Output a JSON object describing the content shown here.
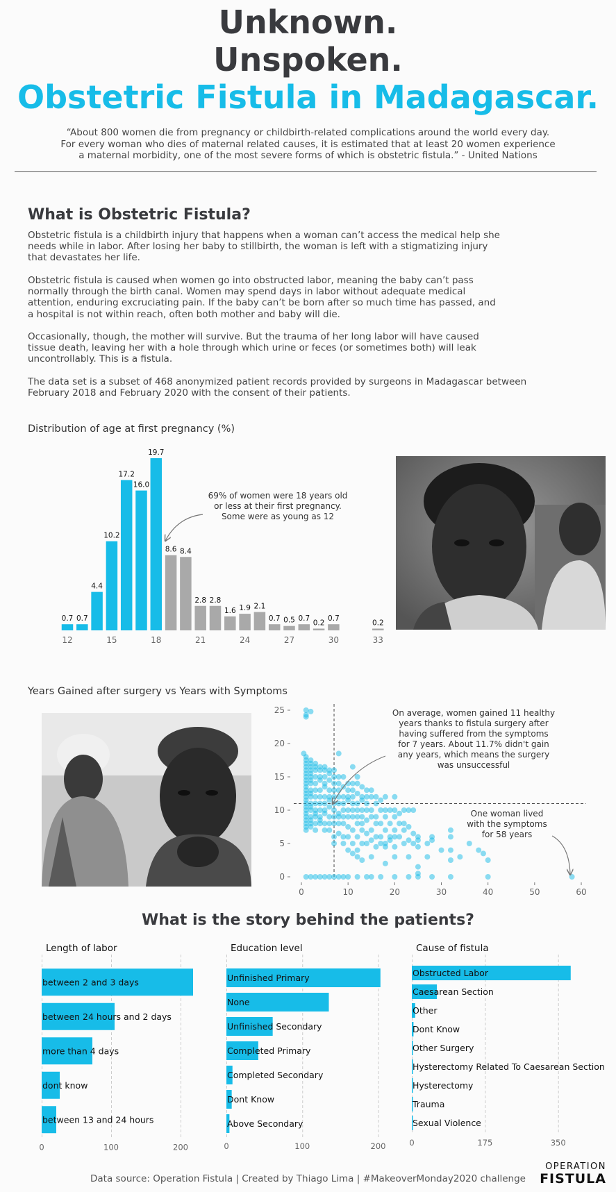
{
  "header": {
    "line1": "Unknown.",
    "line2": "Unspoken.",
    "line3": "Obstetric Fistula in Madagascar.",
    "quote": [
      "“About 800 women die from pregnancy or childbirth-related complications around the world every day.",
      "For every woman who dies of maternal related causes, it is estimated that at least 20 women experience",
      "a maternal morbidity, one of the most severe forms of which is obstetric fistula.” - United Nations"
    ]
  },
  "intro": {
    "title": "What is Obstetric Fistula?",
    "paragraphs": [
      [
        "Obstetric fistula is a childbirth injury that happens when a woman can’t access the medical help she",
        "needs while in labor. After losing her baby to stillbirth, the woman is left with a stigmatizing injury",
        "that devastates her life."
      ],
      [
        "Obstetric fistula is caused when women go into obstructed labor, meaning the baby can’t pass",
        "normally through the birth canal. Women may spend days in labor without adequate medical",
        "attention, enduring excruciating pain. If the baby can’t be born after so much time has passed, and",
        "a hospital is not within reach, often both mother and baby will die."
      ],
      [
        "Occasionally, though, the mother will survive. But the trauma of her long labor will have caused",
        "tissue death, leaving her with a hole through which urine or feces (or sometimes both) will leak",
        "uncontrollably. This is a fistula."
      ],
      [
        "The data set is a subset of 468 anonymized patient records provided by surgeons in Madagascar between",
        "February 2018 and February 2020 with the consent of their patients."
      ]
    ]
  },
  "colors": {
    "accent": "#17bce8",
    "grey": "#a9a9a9",
    "title": "#393a3e"
  },
  "chart_data": [
    {
      "id": "age",
      "type": "bar",
      "title": "Distribution of age at first pregnancy (%)",
      "x": [
        12,
        13,
        14,
        15,
        16,
        17,
        18,
        19,
        20,
        21,
        22,
        23,
        24,
        25,
        26,
        27,
        28,
        29,
        30,
        33
      ],
      "values": [
        0.7,
        0.7,
        4.4,
        10.2,
        17.2,
        16.0,
        19.7,
        8.6,
        8.4,
        2.8,
        2.8,
        1.6,
        1.9,
        2.1,
        0.7,
        0.5,
        0.7,
        0.2,
        0.7,
        0.2
      ],
      "value_labels": [
        "0.7",
        "0.7",
        "4.4",
        "10.2",
        "17.2",
        "16.0",
        "19.7",
        "8.6",
        "8.4",
        "2.8",
        "2.8",
        "1.6",
        "1.9",
        "2.1",
        "0.7",
        "0.5",
        "0.7",
        "0.2",
        "0.7",
        "0.2"
      ],
      "highlight_max_age": 18,
      "xticks": [
        "12",
        "15",
        "18",
        "21",
        "24",
        "27",
        "30",
        "33"
      ],
      "annotation": [
        "69% of women were 18 years old",
        "or less at their first pregnancy.",
        "Some were as young as 12"
      ]
    },
    {
      "id": "scatter",
      "type": "scatter",
      "title": "Years Gained after surgery vs Years with Symptoms",
      "xlim": [
        0,
        60
      ],
      "ylim": [
        0,
        25
      ],
      "xticks": [
        "0",
        "10",
        "20",
        "30",
        "40",
        "50",
        "60"
      ],
      "yticks": [
        "0",
        "5",
        "10",
        "15",
        "20",
        "25"
      ],
      "mean_x": 7,
      "mean_y": 11,
      "annotation_main": [
        "On average, women gained 11 healthy",
        "years thanks to fistula surgery after",
        "having suffered from the symptoms",
        "for 7 years. About 11.7% didn't gain",
        "any years, which means the surgery",
        "was unsuccessful"
      ],
      "annotation_outlier": [
        "One woman lived",
        "with the symptoms",
        "for 58 years"
      ],
      "points": [
        [
          1,
          25
        ],
        [
          1,
          24.3
        ],
        [
          2,
          24.8
        ],
        [
          1,
          24
        ],
        [
          0.5,
          18.5
        ],
        [
          1,
          18
        ],
        [
          1,
          17.5
        ],
        [
          1,
          17
        ],
        [
          1,
          16.5
        ],
        [
          1,
          16
        ],
        [
          1,
          15.5
        ],
        [
          1,
          15
        ],
        [
          1,
          14.5
        ],
        [
          1,
          14
        ],
        [
          1,
          13.5
        ],
        [
          1,
          13
        ],
        [
          1,
          12.5
        ],
        [
          1,
          12
        ],
        [
          1,
          11.5
        ],
        [
          1,
          11
        ],
        [
          1,
          10.5
        ],
        [
          1,
          10
        ],
        [
          1,
          9.5
        ],
        [
          1,
          9
        ],
        [
          1,
          8.5
        ],
        [
          1,
          8
        ],
        [
          1,
          7.5
        ],
        [
          1,
          7
        ],
        [
          2,
          17.5
        ],
        [
          2,
          17
        ],
        [
          2,
          16.5
        ],
        [
          2,
          16
        ],
        [
          2,
          15.5
        ],
        [
          2,
          15
        ],
        [
          2,
          14.5
        ],
        [
          2,
          14
        ],
        [
          2,
          13
        ],
        [
          2,
          12.5
        ],
        [
          2,
          12
        ],
        [
          2,
          11
        ],
        [
          2,
          10.5
        ],
        [
          2,
          10
        ],
        [
          2,
          9
        ],
        [
          2,
          8.5
        ],
        [
          2,
          8
        ],
        [
          2,
          7.5
        ],
        [
          3,
          17
        ],
        [
          3,
          16.5
        ],
        [
          3,
          16
        ],
        [
          3,
          15
        ],
        [
          3,
          14
        ],
        [
          3,
          13
        ],
        [
          3,
          12
        ],
        [
          3,
          11
        ],
        [
          3,
          10
        ],
        [
          3,
          9.5
        ],
        [
          3,
          9
        ],
        [
          3,
          8
        ],
        [
          3,
          7
        ],
        [
          4,
          16.5
        ],
        [
          4,
          16
        ],
        [
          4,
          15
        ],
        [
          4,
          14.5
        ],
        [
          4,
          13
        ],
        [
          4,
          12
        ],
        [
          4,
          11
        ],
        [
          4,
          10
        ],
        [
          4,
          9
        ],
        [
          4,
          8.5
        ],
        [
          4,
          8
        ],
        [
          5,
          16.5
        ],
        [
          5,
          16
        ],
        [
          5,
          15
        ],
        [
          5,
          14
        ],
        [
          5,
          13.5
        ],
        [
          5,
          12
        ],
        [
          5,
          11
        ],
        [
          5,
          10
        ],
        [
          5,
          9.5
        ],
        [
          5,
          8
        ],
        [
          5,
          7
        ],
        [
          6,
          16
        ],
        [
          6,
          15.5
        ],
        [
          6,
          14.5
        ],
        [
          6,
          13
        ],
        [
          6,
          12
        ],
        [
          6,
          11.5
        ],
        [
          6,
          10.5
        ],
        [
          6,
          9
        ],
        [
          6,
          8
        ],
        [
          6,
          7
        ],
        [
          7,
          16
        ],
        [
          7,
          15
        ],
        [
          7,
          14
        ],
        [
          7,
          13
        ],
        [
          7,
          12
        ],
        [
          7,
          11
        ],
        [
          7,
          10
        ],
        [
          7,
          9
        ],
        [
          7,
          8
        ],
        [
          7,
          6
        ],
        [
          7,
          5
        ],
        [
          8,
          18.5
        ],
        [
          8,
          15
        ],
        [
          8,
          14
        ],
        [
          8,
          13
        ],
        [
          8,
          12
        ],
        [
          8,
          11
        ],
        [
          8,
          9.5
        ],
        [
          8,
          9
        ],
        [
          8,
          8
        ],
        [
          8,
          6.5
        ],
        [
          9,
          15
        ],
        [
          9,
          13.5
        ],
        [
          9,
          12
        ],
        [
          9,
          11
        ],
        [
          9,
          10
        ],
        [
          9,
          9
        ],
        [
          9,
          8
        ],
        [
          9,
          6
        ],
        [
          9,
          5
        ],
        [
          10,
          14
        ],
        [
          10,
          13
        ],
        [
          10,
          12
        ],
        [
          10,
          11.5
        ],
        [
          10,
          10
        ],
        [
          10,
          9
        ],
        [
          10,
          7.5
        ],
        [
          10,
          6
        ],
        [
          10,
          4
        ],
        [
          11,
          16.5
        ],
        [
          11,
          14
        ],
        [
          11,
          13
        ],
        [
          11,
          12
        ],
        [
          11,
          11
        ],
        [
          11,
          10
        ],
        [
          11,
          9
        ],
        [
          11,
          7
        ],
        [
          11,
          5
        ],
        [
          11,
          3.5
        ],
        [
          12,
          15
        ],
        [
          12,
          14
        ],
        [
          12,
          12.5
        ],
        [
          12,
          11
        ],
        [
          12,
          10
        ],
        [
          12,
          9
        ],
        [
          12,
          8
        ],
        [
          12,
          6
        ],
        [
          12,
          4
        ],
        [
          12,
          3
        ],
        [
          13,
          13.5
        ],
        [
          13,
          12
        ],
        [
          13,
          11.5
        ],
        [
          13,
          10
        ],
        [
          13,
          9
        ],
        [
          13,
          8
        ],
        [
          13,
          7
        ],
        [
          13,
          5
        ],
        [
          13,
          2.5
        ],
        [
          14,
          13
        ],
        [
          14,
          12
        ],
        [
          14,
          11
        ],
        [
          14,
          10
        ],
        [
          14,
          8.5
        ],
        [
          14,
          6.5
        ],
        [
          14,
          5
        ],
        [
          15,
          13
        ],
        [
          15,
          12
        ],
        [
          15,
          10
        ],
        [
          15,
          9
        ],
        [
          15,
          7
        ],
        [
          15,
          5.5
        ],
        [
          15,
          3
        ],
        [
          16,
          12
        ],
        [
          16,
          11
        ],
        [
          16,
          9
        ],
        [
          16,
          8
        ],
        [
          16,
          6
        ],
        [
          16,
          4.5
        ],
        [
          17,
          11.5
        ],
        [
          17,
          10
        ],
        [
          17,
          8
        ],
        [
          17,
          6
        ],
        [
          17,
          5
        ],
        [
          18,
          12
        ],
        [
          18,
          10
        ],
        [
          18,
          9
        ],
        [
          18,
          7
        ],
        [
          18,
          5
        ],
        [
          18,
          4.5
        ],
        [
          18,
          2
        ],
        [
          19,
          10
        ],
        [
          19,
          8
        ],
        [
          19,
          6
        ],
        [
          19,
          5.5
        ],
        [
          20,
          12
        ],
        [
          20,
          10
        ],
        [
          20,
          9
        ],
        [
          20,
          7
        ],
        [
          20,
          6
        ],
        [
          20,
          4.5
        ],
        [
          20,
          3
        ],
        [
          21,
          9.5
        ],
        [
          21,
          8
        ],
        [
          21,
          6
        ],
        [
          22,
          10
        ],
        [
          22,
          8
        ],
        [
          22,
          7
        ],
        [
          22,
          5
        ],
        [
          23,
          10
        ],
        [
          23,
          7.5
        ],
        [
          23,
          5.5
        ],
        [
          23,
          3
        ],
        [
          24,
          10
        ],
        [
          24,
          5
        ],
        [
          24,
          6.5
        ],
        [
          25,
          6
        ],
        [
          25,
          5.5
        ],
        [
          25,
          4.5
        ],
        [
          25,
          1.5
        ],
        [
          25,
          0.5
        ],
        [
          27,
          5
        ],
        [
          27,
          3
        ],
        [
          28,
          6
        ],
        [
          28,
          5.5
        ],
        [
          30,
          4
        ],
        [
          32,
          7
        ],
        [
          32,
          6
        ],
        [
          32,
          4
        ],
        [
          32,
          2.5
        ],
        [
          34,
          3
        ],
        [
          36,
          5
        ],
        [
          38,
          4
        ],
        [
          39,
          3.5
        ],
        [
          40,
          2.5
        ],
        [
          58,
          0
        ],
        [
          1,
          0
        ],
        [
          2,
          0
        ],
        [
          3,
          0
        ],
        [
          4,
          0
        ],
        [
          5,
          0
        ],
        [
          6,
          0
        ],
        [
          7,
          0
        ],
        [
          8,
          0
        ],
        [
          9,
          0
        ],
        [
          10,
          0
        ],
        [
          12,
          0
        ],
        [
          14,
          0
        ],
        [
          15,
          0
        ],
        [
          17,
          0
        ],
        [
          20,
          0
        ],
        [
          23,
          0
        ],
        [
          25,
          0
        ],
        [
          28,
          0
        ],
        [
          32,
          0
        ],
        [
          40,
          0
        ]
      ]
    },
    {
      "id": "labor",
      "type": "bar",
      "orientation": "horizontal",
      "title": "Length of labor",
      "categories": [
        "between 2 and 3 days",
        "between 24 hours and 2 days",
        "more than 4 days",
        "dont know",
        "between 13 and 24 hours"
      ],
      "values": [
        218,
        105,
        73,
        26,
        21
      ],
      "xlim": [
        0,
        240
      ],
      "xticks": [
        0,
        100,
        200
      ]
    },
    {
      "id": "education",
      "type": "bar",
      "orientation": "horizontal",
      "title": "Education level",
      "categories": [
        "Unfinished Primary",
        "None",
        "Unfinished Secondary",
        "Completed Primary",
        "Completed Secondary",
        "Dont Know",
        "Above Secondary"
      ],
      "values": [
        203,
        135,
        61,
        42,
        8,
        7,
        4
      ],
      "xlim": [
        0,
        216
      ],
      "xticks": [
        0,
        100,
        200
      ]
    },
    {
      "id": "cause",
      "type": "bar",
      "orientation": "horizontal",
      "title": "Cause of fistula",
      "categories": [
        "Obstructed Labor",
        "Caesarean Section",
        "Other",
        "Dont Know",
        "Other Surgery",
        "Hysterectomy Related To Caesarean Section",
        "Hysterectomy",
        "Trauma",
        "Sexual Violence"
      ],
      "values": [
        380,
        60,
        8,
        4,
        2,
        2,
        1,
        1,
        1
      ],
      "xlim": [
        0,
        392
      ],
      "xticks": [
        0,
        175,
        350
      ]
    }
  ],
  "story_title": "What is the story behind the patients?",
  "footer": "Data source: Operation Fistula | Created by Thiago Lima | #MakeoverMonday2020 challenge",
  "logo": {
    "line1": "OPERATION",
    "line2": "FISTULA"
  }
}
